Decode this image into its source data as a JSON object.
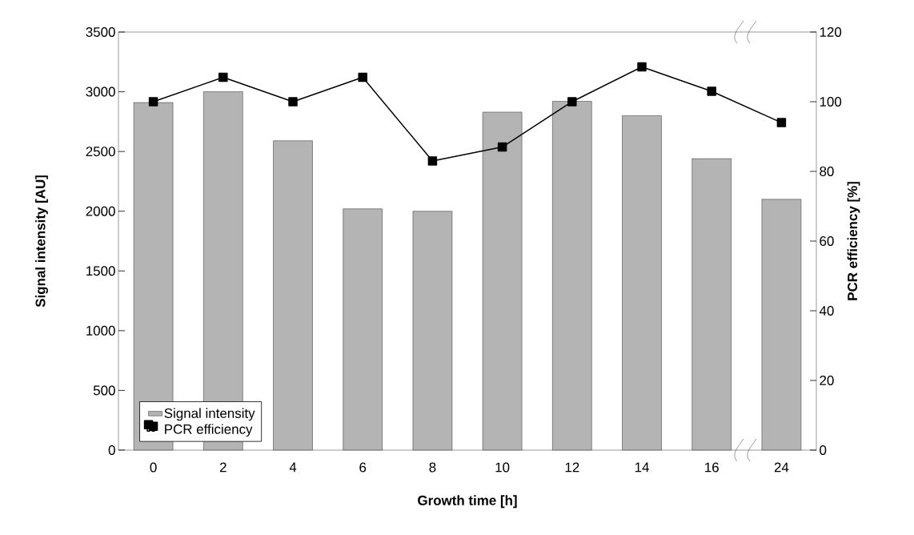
{
  "chart_data": {
    "type": "bar",
    "xlabel": "Growth time [h]",
    "ylabel": "Signal intensity [AU]",
    "y2label": "PCR efficiency [%]",
    "categories": [
      "0",
      "2",
      "4",
      "6",
      "8",
      "10",
      "12",
      "14",
      "16",
      "24"
    ],
    "series": [
      {
        "name": "Signal intensity",
        "color": "#b4b4b4",
        "values": [
          2910,
          3000,
          2590,
          2020,
          2000,
          2830,
          2920,
          2800,
          2440,
          2100
        ]
      },
      {
        "name": "PCR efficiency",
        "type": "line",
        "axis": "y2",
        "color": "#000000",
        "marker": "square",
        "values": [
          100,
          107,
          100,
          107,
          83,
          87,
          100,
          110,
          103,
          94
        ]
      }
    ],
    "ylim": [
      0,
      3500
    ],
    "yticks": [
      0,
      500,
      1000,
      1500,
      2000,
      2500,
      3000,
      3500
    ],
    "y2lim": [
      0,
      120
    ],
    "y2ticks": [
      0,
      20,
      40,
      60,
      80,
      100,
      120
    ],
    "legend": "bottom left",
    "grid": false
  }
}
